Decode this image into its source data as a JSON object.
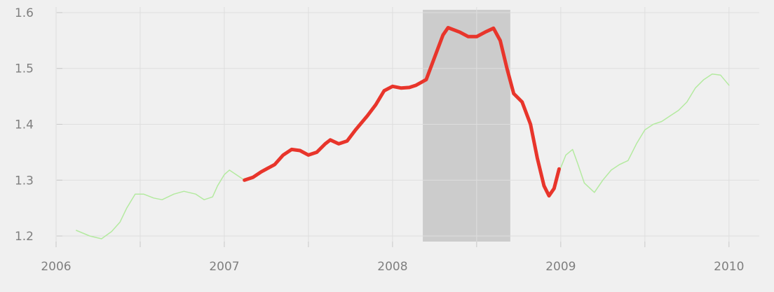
{
  "chart_data": {
    "type": "line",
    "xlim": [
      2006.0,
      2010.18
    ],
    "ylim": [
      1.19,
      1.61
    ],
    "x_ticks": [
      2006,
      2006.5,
      2007,
      2007.5,
      2008,
      2008.5,
      2009,
      2009.5,
      2010
    ],
    "x_tick_labels": [
      "2006",
      "",
      "2007",
      "",
      "2008",
      "",
      "2009",
      "",
      "2010"
    ],
    "y_ticks": [
      1.2,
      1.3,
      1.4,
      1.5,
      1.6
    ],
    "y_tick_labels": [
      "1.2",
      "1.3",
      "1.4",
      "1.5",
      "1.6"
    ],
    "grid": true,
    "shaded_region": {
      "x_start": 2008.18,
      "x_end": 2008.7,
      "color": "#cccccc"
    },
    "series": [
      {
        "color": "#b4eaa0",
        "line_width": 1.5,
        "points": [
          [
            2006.12,
            1.21
          ],
          [
            2006.2,
            1.2
          ],
          [
            2006.27,
            1.195
          ],
          [
            2006.33,
            1.208
          ],
          [
            2006.38,
            1.225
          ],
          [
            2006.42,
            1.25
          ],
          [
            2006.47,
            1.275
          ],
          [
            2006.52,
            1.275
          ],
          [
            2006.58,
            1.268
          ],
          [
            2006.63,
            1.265
          ],
          [
            2006.7,
            1.275
          ],
          [
            2006.76,
            1.28
          ],
          [
            2006.83,
            1.275
          ],
          [
            2006.88,
            1.265
          ],
          [
            2006.93,
            1.27
          ],
          [
            2006.96,
            1.29
          ],
          [
            2007.0,
            1.31
          ],
          [
            2007.03,
            1.318
          ],
          [
            2007.07,
            1.31
          ],
          [
            2007.12,
            1.3
          ],
          [
            2007.17,
            1.305
          ],
          [
            2007.22,
            1.315
          ],
          [
            2007.3,
            1.328
          ],
          [
            2007.35,
            1.345
          ],
          [
            2007.4,
            1.355
          ],
          [
            2007.45,
            1.353
          ],
          [
            2007.5,
            1.345
          ],
          [
            2007.55,
            1.35
          ],
          [
            2007.6,
            1.365
          ],
          [
            2007.63,
            1.372
          ],
          [
            2007.68,
            1.365
          ],
          [
            2007.73,
            1.37
          ],
          [
            2007.78,
            1.39
          ],
          [
            2007.85,
            1.415
          ],
          [
            2007.9,
            1.435
          ],
          [
            2007.95,
            1.46
          ],
          [
            2008.0,
            1.468
          ],
          [
            2008.05,
            1.465
          ],
          [
            2008.1,
            1.466
          ],
          [
            2008.14,
            1.47
          ],
          [
            2008.2,
            1.48
          ],
          [
            2008.25,
            1.52
          ],
          [
            2008.3,
            1.56
          ],
          [
            2008.33,
            1.573
          ],
          [
            2008.4,
            1.565
          ],
          [
            2008.45,
            1.557
          ],
          [
            2008.5,
            1.557
          ],
          [
            2008.55,
            1.565
          ],
          [
            2008.6,
            1.572
          ],
          [
            2008.64,
            1.55
          ],
          [
            2008.68,
            1.5
          ],
          [
            2008.72,
            1.455
          ],
          [
            2008.77,
            1.44
          ],
          [
            2008.82,
            1.4
          ],
          [
            2008.86,
            1.34
          ],
          [
            2008.9,
            1.29
          ],
          [
            2008.93,
            1.272
          ],
          [
            2008.96,
            1.285
          ],
          [
            2008.99,
            1.315
          ],
          [
            2009.03,
            1.345
          ],
          [
            2009.07,
            1.355
          ],
          [
            2009.1,
            1.33
          ],
          [
            2009.14,
            1.295
          ],
          [
            2009.2,
            1.278
          ],
          [
            2009.25,
            1.3
          ],
          [
            2009.3,
            1.318
          ],
          [
            2009.35,
            1.328
          ],
          [
            2009.4,
            1.335
          ],
          [
            2009.45,
            1.365
          ],
          [
            2009.5,
            1.39
          ],
          [
            2009.55,
            1.4
          ],
          [
            2009.6,
            1.405
          ],
          [
            2009.65,
            1.415
          ],
          [
            2009.7,
            1.425
          ],
          [
            2009.75,
            1.44
          ],
          [
            2009.8,
            1.465
          ],
          [
            2009.85,
            1.48
          ],
          [
            2009.9,
            1.49
          ],
          [
            2009.95,
            1.488
          ],
          [
            2010.0,
            1.47
          ]
        ]
      },
      {
        "color": "#e8352b",
        "line_width": 5,
        "points": [
          [
            2007.12,
            1.3
          ],
          [
            2007.17,
            1.305
          ],
          [
            2007.22,
            1.315
          ],
          [
            2007.3,
            1.328
          ],
          [
            2007.35,
            1.345
          ],
          [
            2007.4,
            1.355
          ],
          [
            2007.45,
            1.353
          ],
          [
            2007.5,
            1.345
          ],
          [
            2007.55,
            1.35
          ],
          [
            2007.6,
            1.365
          ],
          [
            2007.63,
            1.372
          ],
          [
            2007.68,
            1.365
          ],
          [
            2007.73,
            1.37
          ],
          [
            2007.78,
            1.39
          ],
          [
            2007.85,
            1.415
          ],
          [
            2007.9,
            1.435
          ],
          [
            2007.95,
            1.46
          ],
          [
            2008.0,
            1.468
          ],
          [
            2008.05,
            1.465
          ],
          [
            2008.1,
            1.466
          ],
          [
            2008.14,
            1.47
          ],
          [
            2008.2,
            1.48
          ],
          [
            2008.25,
            1.52
          ],
          [
            2008.3,
            1.56
          ],
          [
            2008.33,
            1.573
          ],
          [
            2008.4,
            1.565
          ],
          [
            2008.45,
            1.557
          ],
          [
            2008.5,
            1.557
          ],
          [
            2008.55,
            1.565
          ],
          [
            2008.6,
            1.572
          ],
          [
            2008.64,
            1.55
          ],
          [
            2008.68,
            1.5
          ],
          [
            2008.72,
            1.455
          ],
          [
            2008.77,
            1.44
          ],
          [
            2008.82,
            1.4
          ],
          [
            2008.86,
            1.34
          ],
          [
            2008.9,
            1.29
          ],
          [
            2008.93,
            1.272
          ],
          [
            2008.96,
            1.285
          ],
          [
            2008.99,
            1.32
          ]
        ]
      }
    ]
  }
}
